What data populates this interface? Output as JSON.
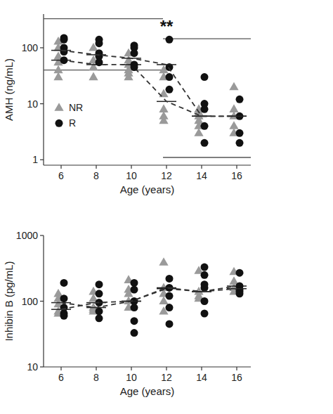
{
  "chart_data": [
    {
      "type": "scatter",
      "log": "y",
      "xlabel": "Age (years)",
      "ylabel": "AMH (ng/mL)",
      "xlim": [
        5,
        16.8
      ],
      "xticks": [
        6,
        8,
        10,
        12,
        14,
        16
      ],
      "ylim": [
        0.8,
        400
      ],
      "yticks": [
        1,
        10,
        100
      ],
      "legend": "left",
      "annotations": [
        {
          "text": "**",
          "x": 12,
          "y": 190
        }
      ],
      "reference_lines": [
        {
          "value": 330,
          "x": [
            5,
            11.8
          ]
        },
        {
          "value": 40,
          "x": [
            5,
            11.8
          ]
        },
        {
          "value": 145,
          "x": [
            11.8,
            16.8
          ]
        },
        {
          "value": 1.1,
          "x": [
            11.8,
            16.8
          ]
        }
      ],
      "series": [
        {
          "name": "NR",
          "color": "#9a9a9a",
          "marker": "triangle",
          "line_style": "dashed",
          "x": [
            6,
            6,
            6,
            6,
            6,
            6,
            8,
            8,
            8,
            8,
            10,
            10,
            10,
            10,
            10,
            10,
            12,
            12,
            12,
            12,
            12,
            12,
            14,
            14,
            14,
            14,
            14,
            14,
            16,
            16,
            16,
            16,
            16
          ],
          "values": [
            130,
            100,
            70,
            55,
            40,
            30,
            100,
            60,
            45,
            30,
            80,
            60,
            50,
            40,
            35,
            30,
            40,
            30,
            15,
            8,
            6,
            5,
            8,
            7,
            6,
            5,
            4,
            3,
            20,
            8,
            6,
            4,
            3
          ],
          "median_x": [
            6,
            8,
            10,
            12,
            14,
            16
          ],
          "medians": [
            60,
            50,
            50,
            11,
            6,
            6
          ]
        },
        {
          "name": "R",
          "color": "#111111",
          "marker": "circle",
          "line_style": "dashed",
          "x": [
            6,
            6,
            6,
            6,
            6,
            8,
            8,
            8,
            8,
            8,
            10,
            10,
            10,
            10,
            10,
            12,
            12,
            12,
            12,
            14,
            14,
            14,
            14,
            14,
            16,
            16,
            16,
            16
          ],
          "values": [
            150,
            140,
            100,
            85,
            60,
            140,
            120,
            80,
            70,
            55,
            110,
            100,
            80,
            50,
            45,
            140,
            45,
            30,
            18,
            30,
            10,
            8,
            4,
            2,
            12,
            6,
            3,
            2
          ],
          "median_x": [
            6,
            8,
            10,
            12,
            14,
            16
          ],
          "medians": [
            90,
            75,
            65,
            50,
            6,
            6
          ]
        }
      ]
    },
    {
      "type": "scatter",
      "log": "y",
      "xlabel": "Age (years)",
      "ylabel": "Inhibin B (pg/mL)",
      "xlim": [
        5,
        16.8
      ],
      "xticks": [
        6,
        8,
        10,
        12,
        14,
        16
      ],
      "ylim": [
        10,
        1000
      ],
      "yticks": [
        10,
        100,
        1000
      ],
      "series": [
        {
          "name": "NR",
          "color": "#9a9a9a",
          "marker": "triangle",
          "line_style": "dashed",
          "x": [
            6,
            6,
            6,
            6,
            6,
            8,
            8,
            8,
            8,
            8,
            10,
            10,
            10,
            10,
            10,
            12,
            12,
            12,
            12,
            12,
            14,
            14,
            14,
            14,
            16,
            16,
            16,
            16
          ],
          "values": [
            130,
            110,
            90,
            70,
            65,
            140,
            110,
            80,
            75,
            70,
            210,
            150,
            130,
            100,
            80,
            390,
            160,
            130,
            100,
            70,
            290,
            140,
            120,
            110,
            280,
            200,
            160,
            140
          ],
          "median_x": [
            6,
            8,
            10,
            12,
            14,
            16
          ],
          "medians": [
            95,
            80,
            100,
            155,
            140,
            170
          ]
        },
        {
          "name": "R",
          "color": "#111111",
          "marker": "circle",
          "line_style": "dashed",
          "x": [
            6,
            6,
            6,
            6,
            6,
            8,
            8,
            8,
            8,
            8,
            10,
            10,
            10,
            10,
            10,
            10,
            12,
            12,
            12,
            12,
            12,
            14,
            14,
            14,
            14,
            14,
            14,
            16,
            16,
            16,
            16,
            16
          ],
          "values": [
            190,
            110,
            80,
            65,
            60,
            180,
            130,
            95,
            70,
            55,
            190,
            150,
            100,
            80,
            50,
            33,
            220,
            160,
            120,
            80,
            45,
            330,
            250,
            180,
            160,
            100,
            65,
            270,
            170,
            150,
            140,
            130
          ],
          "median_x": [
            6,
            8,
            10,
            12,
            14,
            16
          ],
          "medians": [
            75,
            95,
            100,
            160,
            140,
            155
          ]
        }
      ]
    }
  ]
}
